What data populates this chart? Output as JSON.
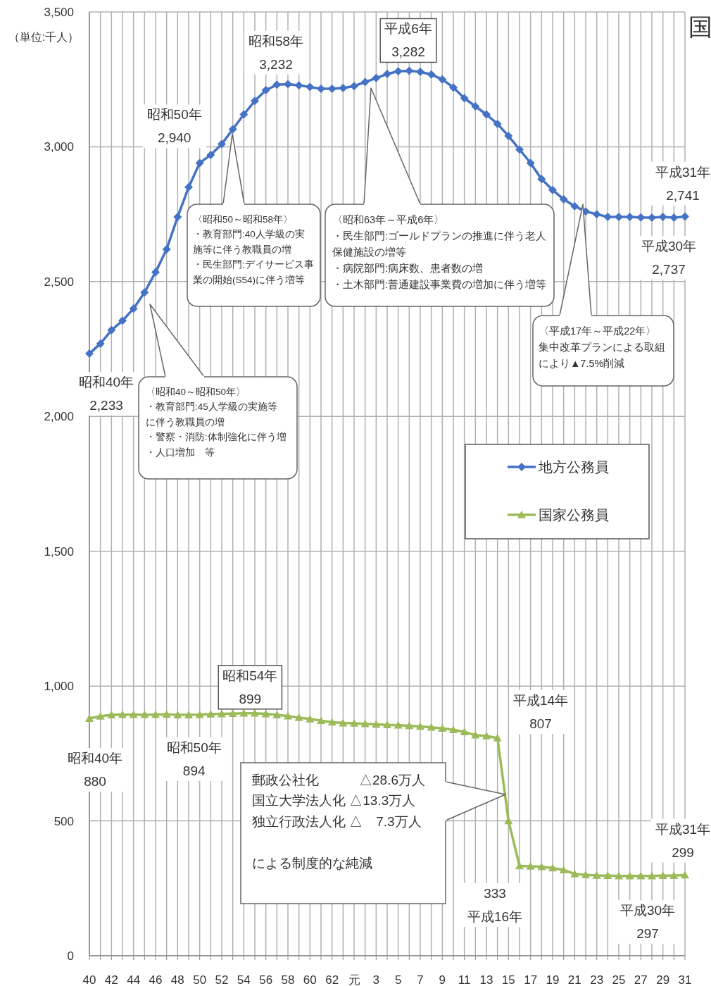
{
  "chart_data": {
    "type": "line",
    "ylabel": "（単位:千人）",
    "categories": [
      "40",
      null,
      "42",
      null,
      "44",
      null,
      "46",
      null,
      "48",
      null,
      "50",
      null,
      "52",
      null,
      "54",
      null,
      "56",
      null,
      "58",
      null,
      "60",
      null,
      "62",
      null,
      "元",
      null,
      "3",
      null,
      "5",
      null,
      "7",
      null,
      "9",
      null,
      "11",
      null,
      "13",
      null,
      "15",
      null,
      "17",
      null,
      "19",
      null,
      "21",
      null,
      "23",
      null,
      "25",
      null,
      "27",
      null,
      "29",
      null,
      "31"
    ],
    "series": [
      {
        "name": "地方公務員",
        "color": "#4472c4",
        "marker": "diamond",
        "values": [
          2233,
          2270,
          2320,
          2355,
          2400,
          2460,
          2535,
          2620,
          2740,
          2850,
          2940,
          2970,
          3010,
          3065,
          3120,
          3170,
          3210,
          3230,
          3232,
          3228,
          3222,
          3215,
          3215,
          3218,
          3225,
          3240,
          3255,
          3270,
          3280,
          3282,
          3278,
          3268,
          3250,
          3220,
          3180,
          3150,
          3120,
          3085,
          3040,
          2990,
          2940,
          2880,
          2840,
          2805,
          2780,
          2760,
          2750,
          2740,
          2740,
          2740,
          2738,
          2737,
          2740,
          2737,
          2741
        ]
      },
      {
        "name": "国家公務員",
        "color": "#9bbb59",
        "marker": "triangle",
        "values": [
          880,
          888,
          893,
          894,
          894,
          894,
          894,
          895,
          893,
          893,
          894,
          896,
          897,
          898,
          899,
          899,
          897,
          893,
          889,
          883,
          878,
          872,
          866,
          863,
          862,
          860,
          858,
          856,
          855,
          853,
          850,
          847,
          843,
          838,
          830,
          818,
          815,
          807,
          500,
          333,
          332,
          330,
          325,
          318,
          303,
          300,
          298,
          297,
          296,
          296,
          296,
          296,
          297,
          297,
          299
        ]
      }
    ],
    "ylim": [
      0,
      3500
    ],
    "yticks": [
      0,
      {
        "value": 500,
        "label": "500"
      },
      {
        "value": 1000,
        "label": "1,000"
      },
      {
        "value": 1500,
        "label": "1,500"
      },
      {
        "value": 2000,
        "label": "2,000"
      },
      {
        "value": 2500,
        "label": "2,500"
      },
      {
        "value": 3000,
        "label": "3,000"
      },
      {
        "value": 3500,
        "label": "3,500"
      }
    ],
    "grid": true,
    "legend": "right",
    "line_style": "solid",
    "annotations": [
      {
        "text": "昭和40年\n2,233",
        "x": "40",
        "y": 2233
      },
      {
        "text": "昭和50年\n2,940",
        "x": "50",
        "y": 2940
      },
      {
        "text": "昭和58年\n3,232",
        "x": "58",
        "y": 3232
      },
      {
        "text": "平成6年\n3,282",
        "y": 3282
      },
      {
        "text": "平成31年\n2,741",
        "x": "31",
        "y": 2741
      },
      {
        "text": "平成30年\n2,737",
        "y": 2737
      },
      {
        "text": "昭和40年\n880",
        "x": "40",
        "y": 880
      },
      {
        "text": "昭和50年\n894",
        "x": "50",
        "y": 894
      },
      {
        "text": "昭和54年\n899",
        "x": "54",
        "y": 899
      },
      "平成14年\n807",
      "333\n平成16年",
      {
        "text": "平成31年\n299",
        "x": "31",
        "y": 299
      },
      {
        "text": "平成30年\n297",
        "y": 297
      },
      "〈昭和50～昭和58年〉・教育部門:40人学級の実施等に伴う教職員の増・民生部門:デイサービス事業の開始(S54)に伴う増等",
      "〈昭和63年～平成6年〉・民生部門:ゴールドプランの推進に伴う老人保健施設の増等・病院部門:病床数、患者数の増・土木部門:普通建設事業費の増加に伴う増等",
      "〈昭和40～昭和50年〉・教育部門:45人学級の実施等に伴う教職員の増・警察・消防:体制強化に伴う増・人口増加　等",
      "〈平成17年～平成22年〉集中改革プランによる取組により▲7.5%削減",
      "郵政公社化　　　△28.6万人国立大学法人化 △13.3万人独立行政法人化 △　7.3万人による制度的な純減",
      "国"
    ]
  }
}
